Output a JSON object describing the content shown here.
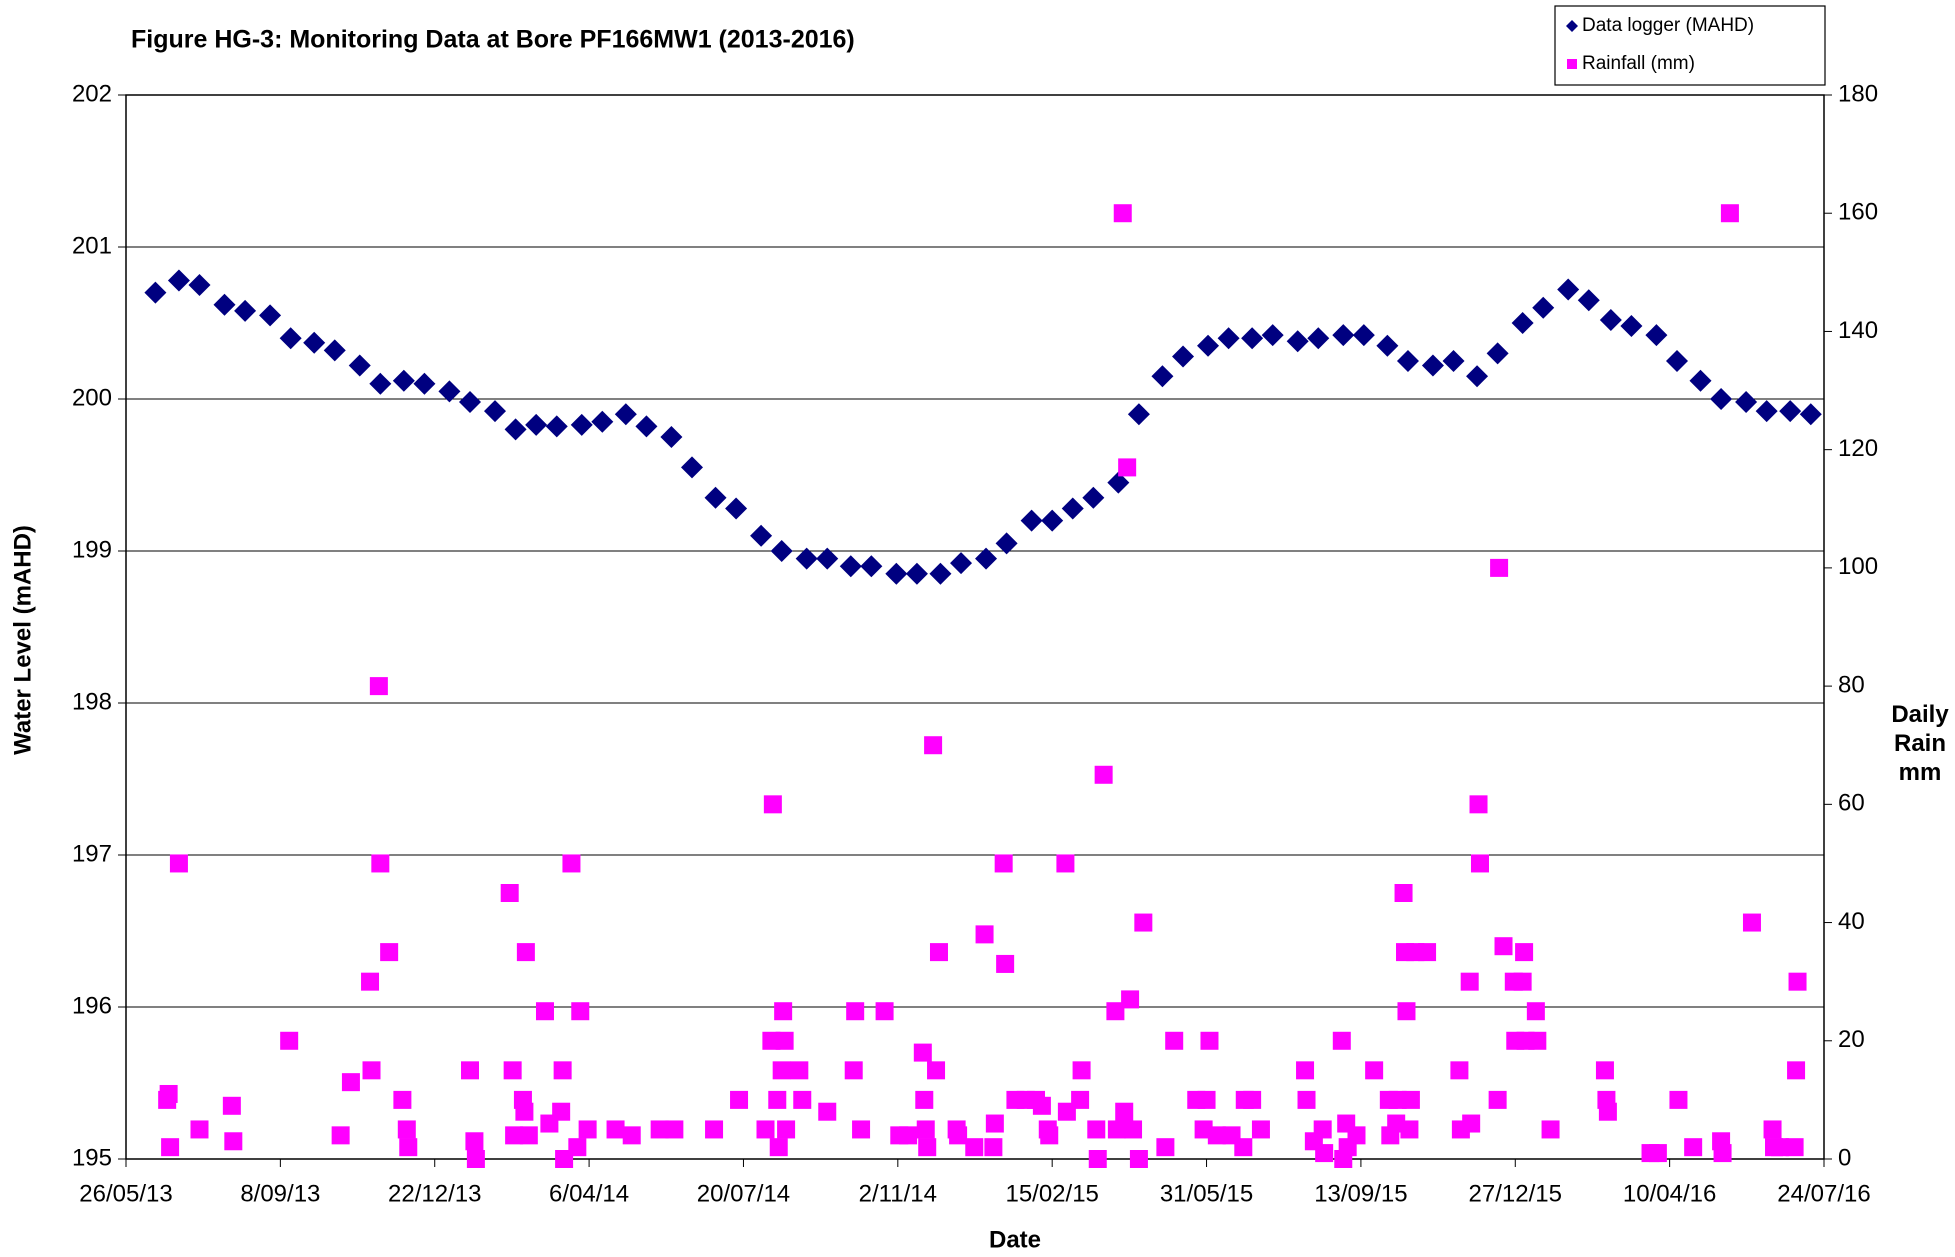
{
  "chart_data": {
    "type": "scatter",
    "title": "Figure HG-3: Monitoring Data at Bore PF166MW1 (2013-2016)",
    "x_label": "Date",
    "y_label": "Water Level (mAHD)",
    "y2_label": "Daily Rain mm",
    "xlim": [
      "2013-05-26",
      "2016-07-24"
    ],
    "xticks": [
      {
        "value": "2013-05-26",
        "label": "26/05/13"
      },
      {
        "value": "2013-09-08",
        "label": "8/09/13"
      },
      {
        "value": "2013-12-22",
        "label": "22/12/13"
      },
      {
        "value": "2014-04-06",
        "label": "6/04/14"
      },
      {
        "value": "2014-07-20",
        "label": "20/07/14"
      },
      {
        "value": "2014-11-02",
        "label": "2/11/14"
      },
      {
        "value": "2015-02-15",
        "label": "15/02/15"
      },
      {
        "value": "2015-05-31",
        "label": "31/05/15"
      },
      {
        "value": "2015-09-13",
        "label": "13/09/15"
      },
      {
        "value": "2015-12-27",
        "label": "27/12/15"
      },
      {
        "value": "2016-04-10",
        "label": "10/04/16"
      },
      {
        "value": "2016-07-24",
        "label": "24/07/16"
      }
    ],
    "ylim": [
      195,
      202
    ],
    "yticks": [
      195,
      196,
      197,
      198,
      199,
      200,
      201,
      202
    ],
    "y2lim": [
      0,
      180
    ],
    "y2ticks": [
      0,
      20,
      40,
      60,
      80,
      100,
      120,
      140,
      160,
      180
    ],
    "grid": true,
    "legend": "upper right",
    "series": [
      {
        "name": "Data logger (MAHD)",
        "color": "#000080",
        "marker": "diamond",
        "axis": "y",
        "x": [
          "2013-06-15",
          "2013-07-01",
          "2013-07-15",
          "2013-08-01",
          "2013-08-15",
          "2013-09-01",
          "2013-09-15",
          "2013-10-01",
          "2013-10-15",
          "2013-11-01",
          "2013-11-15",
          "2013-12-01",
          "2013-12-15",
          "2014-01-01",
          "2014-01-15",
          "2014-02-01",
          "2014-02-15",
          "2014-03-01",
          "2014-03-15",
          "2014-04-01",
          "2014-04-15",
          "2014-05-01",
          "2014-05-15",
          "2014-06-01",
          "2014-06-15",
          "2014-07-01",
          "2014-07-15",
          "2014-08-01",
          "2014-08-15",
          "2014-09-01",
          "2014-09-15",
          "2014-10-01",
          "2014-10-15",
          "2014-11-01",
          "2014-11-15",
          "2014-12-01",
          "2014-12-15",
          "2015-01-01",
          "2015-01-15",
          "2015-02-01",
          "2015-02-15",
          "2015-03-01",
          "2015-03-15",
          "2015-04-01",
          "2015-04-15",
          "2015-05-01",
          "2015-05-15",
          "2015-06-01",
          "2015-06-15",
          "2015-07-01",
          "2015-07-15",
          "2015-08-01",
          "2015-08-15",
          "2015-09-01",
          "2015-09-15",
          "2015-10-01",
          "2015-10-15",
          "2015-11-01",
          "2015-11-15",
          "2015-12-01",
          "2015-12-15",
          "2016-01-01",
          "2016-01-15",
          "2016-02-01",
          "2016-02-15",
          "2016-03-01",
          "2016-03-15",
          "2016-04-01",
          "2016-04-15",
          "2016-05-01",
          "2016-05-15",
          "2016-06-01",
          "2016-06-15",
          "2016-07-01",
          "2016-07-15"
        ],
        "values": [
          200.7,
          200.78,
          200.75,
          200.62,
          200.58,
          200.55,
          200.4,
          200.37,
          200.32,
          200.22,
          200.1,
          200.12,
          200.1,
          200.05,
          199.98,
          199.92,
          199.8,
          199.83,
          199.82,
          199.83,
          199.85,
          199.9,
          199.82,
          199.75,
          199.55,
          199.35,
          199.28,
          199.1,
          199.0,
          198.95,
          198.95,
          198.9,
          198.9,
          198.85,
          198.85,
          198.85,
          198.92,
          198.95,
          199.05,
          199.2,
          199.2,
          199.28,
          199.35,
          199.45,
          199.9,
          200.15,
          200.28,
          200.35,
          200.4,
          200.4,
          200.42,
          200.38,
          200.4,
          200.42,
          200.42,
          200.35,
          200.25,
          200.22,
          200.25,
          200.15,
          200.3,
          200.5,
          200.6,
          200.72,
          200.65,
          200.52,
          200.48,
          200.42,
          200.25,
          200.12,
          200.0,
          199.98,
          199.92,
          199.92,
          199.9
        ]
      },
      {
        "name": "Rainfall (mm)",
        "color": "#ff00ff",
        "marker": "square",
        "axis": "y2",
        "x": [
          "2013-06-23",
          "2013-06-24",
          "2013-06-25",
          "2013-07-01",
          "2013-07-15",
          "2013-08-06",
          "2013-08-07",
          "2013-09-14",
          "2013-10-19",
          "2013-10-26",
          "2013-11-08",
          "2013-11-09",
          "2013-11-14",
          "2013-11-15",
          "2013-11-21",
          "2013-11-30",
          "2013-12-03",
          "2013-12-04",
          "2014-01-15",
          "2014-01-18",
          "2014-01-19",
          "2014-02-11",
          "2014-02-13",
          "2014-02-14",
          "2014-02-20",
          "2014-02-21",
          "2014-02-22",
          "2014-02-24",
          "2014-03-07",
          "2014-03-10",
          "2014-03-18",
          "2014-03-19",
          "2014-03-20",
          "2014-03-25",
          "2014-03-29",
          "2014-03-31",
          "2014-04-05",
          "2014-04-24",
          "2014-05-05",
          "2014-05-24",
          "2014-06-03",
          "2014-06-30",
          "2014-07-17",
          "2014-08-04",
          "2014-08-08",
          "2014-08-09",
          "2014-08-12",
          "2014-08-13",
          "2014-08-15",
          "2014-08-16",
          "2014-08-17",
          "2014-08-18",
          "2014-08-27",
          "2014-08-29",
          "2014-09-15",
          "2014-10-03",
          "2014-10-04",
          "2014-10-08",
          "2014-10-24",
          "2014-11-03",
          "2014-11-09",
          "2014-11-19",
          "2014-11-20",
          "2014-11-21",
          "2014-11-22",
          "2014-11-26",
          "2014-11-28",
          "2014-11-30",
          "2014-12-12",
          "2014-12-13",
          "2014-12-24",
          "2014-12-31",
          "2015-01-06",
          "2015-01-07",
          "2015-01-13",
          "2015-01-14",
          "2015-01-21",
          "2015-01-28",
          "2015-02-04",
          "2015-02-08",
          "2015-02-12",
          "2015-02-13",
          "2015-02-24",
          "2015-02-25",
          "2015-03-06",
          "2015-03-07",
          "2015-03-17",
          "2015-03-18",
          "2015-03-22",
          "2015-03-30",
          "2015-03-31",
          "2015-04-04",
          "2015-04-05",
          "2015-04-07",
          "2015-04-09",
          "2015-04-11",
          "2015-04-15",
          "2015-04-18",
          "2015-05-03",
          "2015-05-09",
          "2015-05-24",
          "2015-05-29",
          "2015-05-31",
          "2015-06-02",
          "2015-06-07",
          "2015-06-17",
          "2015-06-25",
          "2015-06-26",
          "2015-07-01",
          "2015-07-07",
          "2015-08-06",
          "2015-08-07",
          "2015-08-12",
          "2015-08-18",
          "2015-08-19",
          "2015-08-31",
          "2015-09-01",
          "2015-09-03",
          "2015-09-04",
          "2015-09-10",
          "2015-09-22",
          "2015-10-02",
          "2015-10-03",
          "2015-10-07",
          "2015-10-08",
          "2015-10-12",
          "2015-10-13",
          "2015-10-14",
          "2015-10-16",
          "2015-10-17",
          "2015-10-20",
          "2015-10-28",
          "2015-11-19",
          "2015-11-20",
          "2015-11-26",
          "2015-11-27",
          "2015-12-02",
          "2015-12-03",
          "2015-12-15",
          "2015-12-16",
          "2015-12-19",
          "2015-12-26",
          "2015-12-27",
          "2016-01-01",
          "2016-01-02",
          "2016-01-03",
          "2016-01-10",
          "2016-01-11",
          "2016-01-20",
          "2016-02-26",
          "2016-02-27",
          "2016-02-28",
          "2016-03-28",
          "2016-04-02",
          "2016-04-16",
          "2016-04-26",
          "2016-05-15",
          "2016-05-16",
          "2016-05-21",
          "2016-06-05",
          "2016-06-19",
          "2016-06-20",
          "2016-06-24",
          "2016-07-04",
          "2016-07-05",
          "2016-07-06"
        ],
        "values": [
          10,
          11,
          2,
          50,
          5,
          9,
          3,
          20,
          4,
          13,
          30,
          15,
          80,
          50,
          35,
          10,
          5,
          2,
          15,
          3,
          0,
          45,
          15,
          4,
          10,
          8,
          35,
          4,
          25,
          6,
          8,
          15,
          0,
          50,
          2,
          25,
          5,
          5,
          4,
          5,
          5,
          5,
          10,
          5,
          20,
          60,
          10,
          2,
          15,
          25,
          20,
          5,
          15,
          10,
          8,
          15,
          25,
          5,
          25,
          4,
          4,
          18,
          10,
          5,
          2,
          70,
          15,
          35,
          5,
          4,
          2,
          38,
          2,
          6,
          50,
          33,
          10,
          10,
          10,
          9,
          5,
          4,
          50,
          8,
          10,
          15,
          5,
          0,
          65,
          25,
          5,
          160,
          8,
          117,
          27,
          5,
          0,
          40,
          2,
          20,
          10,
          5,
          10,
          20,
          4,
          4,
          2,
          10,
          10,
          5,
          15,
          10,
          3,
          5,
          1,
          20,
          0,
          6,
          2,
          4,
          15,
          10,
          4,
          6,
          10,
          45,
          35,
          25,
          5,
          10,
          35,
          35,
          15,
          5,
          30,
          6,
          60,
          50,
          10,
          100,
          36,
          30,
          20,
          30,
          35,
          20,
          25,
          20,
          5,
          15,
          10,
          8,
          1,
          1,
          10,
          2,
          3,
          1,
          160,
          40,
          5,
          2,
          2,
          2,
          15,
          30
        ]
      }
    ]
  }
}
